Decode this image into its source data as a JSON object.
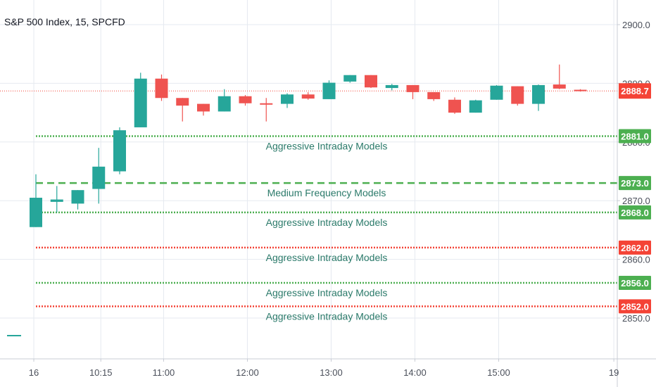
{
  "colors": {
    "up": "#26a69a",
    "down": "#ef5350",
    "green_level": "#4caf50",
    "red_level": "#f44336",
    "label_text": "#2b7a6a",
    "grid": "#e6eaf0"
  },
  "chart_data": {
    "type": "candlestick",
    "title": "S&P 500 Index, 15, SPCFD",
    "ylim": [
      2838,
      2910
    ],
    "y_ticks": [
      {
        "value": 2900,
        "label": "2900.0"
      },
      {
        "value": 2890,
        "label": "2890.0"
      },
      {
        "value": 2880,
        "label": "2880.0"
      },
      {
        "value": 2870,
        "label": "2870.0"
      },
      {
        "value": 2860,
        "label": "2860.0"
      },
      {
        "value": 2850,
        "label": "2850.0"
      }
    ],
    "x_ticks": [
      {
        "index": -0.1,
        "label": "16"
      },
      {
        "index": 3.1,
        "label": "10:15"
      },
      {
        "index": 6.1,
        "label": "11:00"
      },
      {
        "index": 10.1,
        "label": "12:00"
      },
      {
        "index": 14.1,
        "label": "13:00"
      },
      {
        "index": 18.1,
        "label": "14:00"
      },
      {
        "index": 22.1,
        "label": "15:00"
      },
      {
        "index": 27.6,
        "label": "19"
      }
    ],
    "prev_session_mark": {
      "price": 2847
    },
    "candles": [
      {
        "o": 2865.5,
        "h": 2874.5,
        "l": 2865.5,
        "c": 2870.5
      },
      {
        "o": 2869.8,
        "h": 2872.5,
        "l": 2868.0,
        "c": 2870.2
      },
      {
        "o": 2869.5,
        "h": 2871.8,
        "l": 2868.5,
        "c": 2871.8
      },
      {
        "o": 2872.0,
        "h": 2879.0,
        "l": 2869.5,
        "c": 2875.8
      },
      {
        "o": 2875.0,
        "h": 2882.5,
        "l": 2874.5,
        "c": 2882.0
      },
      {
        "o": 2882.5,
        "h": 2891.8,
        "l": 2882.5,
        "c": 2890.8
      },
      {
        "o": 2890.8,
        "h": 2891.5,
        "l": 2887.0,
        "c": 2887.5
      },
      {
        "o": 2887.5,
        "h": 2887.5,
        "l": 2883.5,
        "c": 2886.2
      },
      {
        "o": 2886.5,
        "h": 2886.5,
        "l": 2884.5,
        "c": 2885.2
      },
      {
        "o": 2885.2,
        "h": 2889.0,
        "l": 2885.2,
        "c": 2887.8
      },
      {
        "o": 2887.8,
        "h": 2888.0,
        "l": 2886.2,
        "c": 2886.6
      },
      {
        "o": 2886.6,
        "h": 2887.5,
        "l": 2883.5,
        "c": 2886.4
      },
      {
        "o": 2886.5,
        "h": 2888.3,
        "l": 2885.8,
        "c": 2888.1
      },
      {
        "o": 2888.1,
        "h": 2888.5,
        "l": 2887.2,
        "c": 2887.4
      },
      {
        "o": 2887.3,
        "h": 2890.5,
        "l": 2887.3,
        "c": 2890.1
      },
      {
        "o": 2890.3,
        "h": 2891.4,
        "l": 2890.1,
        "c": 2891.4
      },
      {
        "o": 2891.4,
        "h": 2891.4,
        "l": 2889.2,
        "c": 2889.3
      },
      {
        "o": 2889.2,
        "h": 2889.9,
        "l": 2888.8,
        "c": 2889.7
      },
      {
        "o": 2889.7,
        "h": 2889.7,
        "l": 2887.3,
        "c": 2888.5
      },
      {
        "o": 2888.5,
        "h": 2888.5,
        "l": 2887.0,
        "c": 2887.3
      },
      {
        "o": 2887.2,
        "h": 2887.6,
        "l": 2884.8,
        "c": 2885.0
      },
      {
        "o": 2885.0,
        "h": 2887.2,
        "l": 2885.0,
        "c": 2887.1
      },
      {
        "o": 2887.2,
        "h": 2889.7,
        "l": 2887.2,
        "c": 2889.6
      },
      {
        "o": 2889.5,
        "h": 2889.5,
        "l": 2886.2,
        "c": 2886.5
      },
      {
        "o": 2886.5,
        "h": 2889.8,
        "l": 2885.3,
        "c": 2889.7
      },
      {
        "o": 2889.8,
        "h": 2893.2,
        "l": 2889.0,
        "c": 2889.1
      },
      {
        "o": 2888.9,
        "h": 2889.0,
        "l": 2888.6,
        "c": 2888.7
      }
    ],
    "current_price": {
      "value": 2888.7,
      "label": "2888.7"
    },
    "levels": [
      {
        "price": 2881.0,
        "tag": "2881.0",
        "color": "green",
        "style": "dotted",
        "label": "Aggressive Intraday Models"
      },
      {
        "price": 2873.0,
        "tag": "2873.0",
        "color": "green",
        "style": "dashed",
        "label": "Medium Frequency Models"
      },
      {
        "price": 2868.0,
        "tag": "2868.0",
        "color": "green",
        "style": "dotted",
        "label": "Aggressive Intraday Models"
      },
      {
        "price": 2862.0,
        "tag": "2862.0",
        "color": "red",
        "style": "dotted",
        "label": "Aggressive Intraday Models"
      },
      {
        "price": 2856.0,
        "tag": "2856.0",
        "color": "green",
        "style": "dotted",
        "label": "Aggressive Intraday Models"
      },
      {
        "price": 2852.0,
        "tag": "2852.0",
        "color": "red",
        "style": "dotted",
        "label": "Aggressive Intraday Models"
      }
    ]
  }
}
